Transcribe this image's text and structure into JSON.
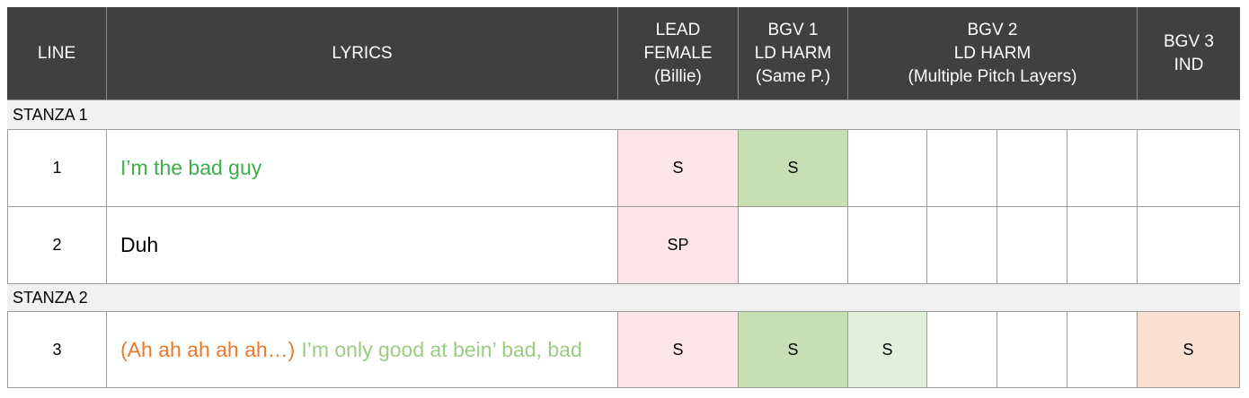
{
  "colors": {
    "header_bg": "#404040",
    "green_text": "#3cae4a",
    "orange_text": "#e87a2e",
    "light_green_text": "#9ccc84",
    "lead_bg": "#fbe5e9",
    "bgv1_bg": "#c6e0b4",
    "bgv2_bg": "#e2efda",
    "bgv3_bg": "#fbe1d3"
  },
  "header": {
    "line": "LINE",
    "lyrics": "LYRICS",
    "lead": [
      "LEAD",
      "FEMALE",
      "(Billie)"
    ],
    "bgv1": [
      "BGV 1",
      "LD HARM",
      "(Same P.)"
    ],
    "bgv2": [
      "BGV 2",
      "LD HARM",
      "(Multiple Pitch Layers)"
    ],
    "bgv3": [
      "BGV 3",
      "IND"
    ]
  },
  "stanzas": [
    {
      "label": "STANZA 1"
    },
    {
      "label": "STANZA 2"
    }
  ],
  "rows": [
    {
      "line": "1",
      "lyric_a": "I’m the bad guy",
      "lead": "S",
      "bgv1": "S",
      "bgv2_1": "",
      "bgv2_2": "",
      "bgv2_3": "",
      "bgv2_4": "",
      "bgv3": ""
    },
    {
      "line": "2",
      "lyric_a": "Duh",
      "lead": "SP",
      "bgv1": "",
      "bgv2_1": "",
      "bgv2_2": "",
      "bgv2_3": "",
      "bgv2_4": "",
      "bgv3": ""
    },
    {
      "line": "3",
      "lyric_a": "(Ah ah ah ah ah…)",
      "lyric_b": "I’m only good at bein’ bad, bad",
      "lead": "S",
      "bgv1": "S",
      "bgv2_1": "S",
      "bgv2_2": "",
      "bgv2_3": "",
      "bgv2_4": "",
      "bgv3": "S"
    }
  ]
}
